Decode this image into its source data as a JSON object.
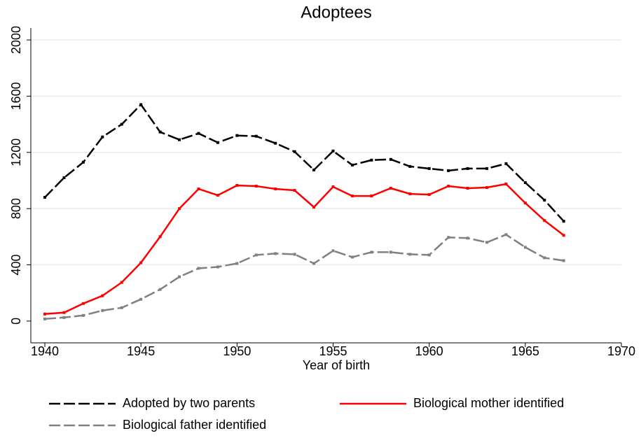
{
  "chart_data": {
    "type": "line",
    "title": "Adoptees",
    "x_label": "Year of birth",
    "x": [
      1940,
      1941,
      1942,
      1943,
      1944,
      1945,
      1946,
      1947,
      1948,
      1949,
      1950,
      1951,
      1952,
      1953,
      1954,
      1955,
      1956,
      1957,
      1958,
      1959,
      1960,
      1961,
      1962,
      1963,
      1964,
      1965,
      1966,
      1967
    ],
    "series": [
      {
        "name": "Adopted by two parents",
        "color": "#000000",
        "dash": true,
        "values": [
          880,
          1020,
          1130,
          1310,
          1400,
          1540,
          1345,
          1290,
          1335,
          1270,
          1320,
          1315,
          1265,
          1205,
          1075,
          1210,
          1110,
          1145,
          1150,
          1100,
          1085,
          1070,
          1085,
          1085,
          1120,
          985,
          860,
          710
        ]
      },
      {
        "name": "Biological mother identified",
        "color": "#ff0000",
        "dash": false,
        "values": [
          50,
          60,
          125,
          180,
          275,
          415,
          600,
          800,
          940,
          895,
          965,
          960,
          940,
          930,
          810,
          955,
          890,
          890,
          945,
          905,
          900,
          960,
          945,
          950,
          975,
          840,
          715,
          610
        ]
      },
      {
        "name": "Biological father identified",
        "color": "#808080",
        "dash": true,
        "values": [
          15,
          25,
          40,
          75,
          95,
          155,
          225,
          315,
          375,
          385,
          410,
          470,
          480,
          475,
          410,
          500,
          455,
          490,
          490,
          475,
          470,
          595,
          590,
          560,
          615,
          525,
          450,
          430
        ]
      }
    ],
    "xlim": [
      1939.27,
      1970
    ],
    "xticks": [
      1940,
      1945,
      1950,
      1955,
      1960,
      1965,
      1970
    ],
    "ylim": [
      -155,
      2085
    ],
    "yticks": [
      0,
      400,
      800,
      1200,
      1600,
      2000
    ],
    "grid": true
  }
}
